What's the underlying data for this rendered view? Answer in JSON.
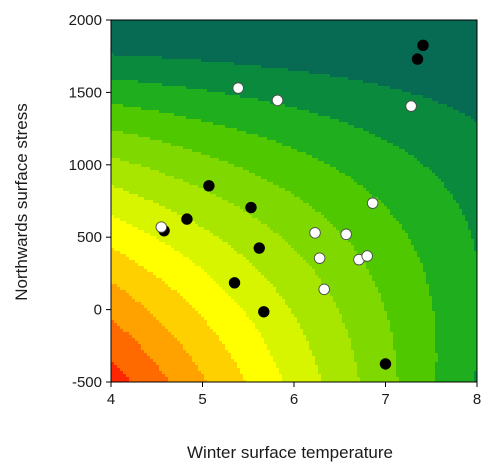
{
  "chart_data": {
    "type": "scatter",
    "subtype": "filled-contour-with-points",
    "title": "",
    "xlabel": "Winter surface temperature",
    "ylabel": "Northwards surface stress",
    "xlim": [
      4,
      8
    ],
    "ylim": [
      -500,
      2000
    ],
    "xticks": [
      "4",
      "5",
      "6",
      "7",
      "8"
    ],
    "yticks": [
      "-500",
      "0",
      "500",
      "1000",
      "1500",
      "2000"
    ],
    "grid": false,
    "legend": "none",
    "contour_colors": [
      "#ff2600",
      "#ff6a00",
      "#ffa200",
      "#ffd000",
      "#ffff00",
      "#d8f500",
      "#a8e600",
      "#7fd900",
      "#4fc800",
      "#1fae1e",
      "#0a8a3c",
      "#066b52"
    ],
    "series": [
      {
        "marker": "filled-black",
        "color": "#000000",
        "x": [
          4.58,
          4.83,
          5.07,
          5.53,
          5.62,
          5.35,
          5.67,
          7.0,
          7.35,
          7.41
        ],
        "y": [
          545,
          625,
          855,
          705,
          425,
          185,
          -15,
          -375,
          1730,
          1825
        ]
      },
      {
        "marker": "open-white",
        "color": "#ffffff",
        "x": [
          4.55,
          5.39,
          5.82,
          6.23,
          6.28,
          6.33,
          6.57,
          6.71,
          6.8,
          6.86,
          7.28
        ],
        "y": [
          570,
          1530,
          1445,
          530,
          355,
          140,
          520,
          345,
          370,
          735,
          1405
        ]
      }
    ]
  }
}
